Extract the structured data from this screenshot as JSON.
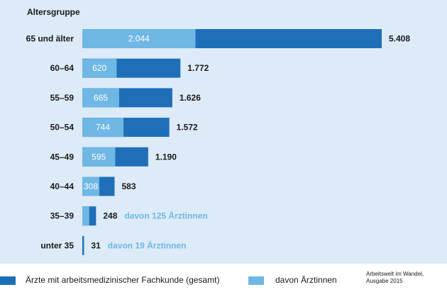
{
  "chart_data": {
    "type": "bar",
    "orientation": "horizontal",
    "stacked": "overlay",
    "axis_title": "Altersgruppe",
    "categories": [
      "65 und älter",
      "60–64",
      "55–59",
      "50–54",
      "45–49",
      "40–44",
      "35–39",
      "unter 35"
    ],
    "series": [
      {
        "name": "Ärzte mit arbeitsmedizinischer Fachkunde (gesamt)",
        "color": "#1f6fb8",
        "values": [
          5408,
          1772,
          1626,
          1572,
          1190,
          583,
          248,
          31
        ],
        "labels": [
          "5.408",
          "1.772",
          "1.626",
          "1.572",
          "1.190",
          "583",
          "248",
          "31"
        ]
      },
      {
        "name": "davon Ärztinnen",
        "color": "#6fb7e4",
        "values": [
          2044,
          620,
          665,
          744,
          595,
          308,
          125,
          19
        ],
        "labels": [
          "2.044",
          "620",
          "665",
          "744",
          "595",
          "308",
          "",
          ""
        ]
      }
    ],
    "notes": [
      "",
      "",
      "",
      "",
      "",
      "",
      "davon 125 Ärztinnen",
      "davon 19 Ärztinnen"
    ],
    "xlim": [
      0,
      5408
    ],
    "grid": false,
    "legend_position": "bottom"
  },
  "legend": {
    "total_label": "Ärzte mit arbeitsmedizinischer Fachkunde (gesamt)",
    "female_label": "davon Ärztinnen"
  },
  "source": {
    "line1": "Arbeitswelt im Wandel,",
    "line2": "Ausgabe 2015"
  }
}
